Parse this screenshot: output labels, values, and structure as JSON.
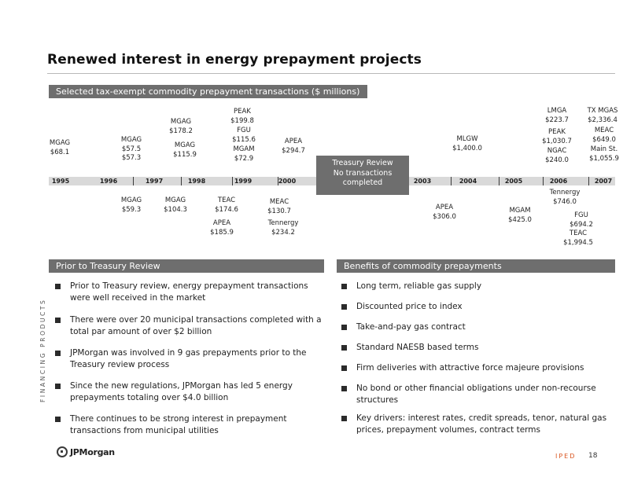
{
  "title": "Renewed interest in energy prepayment projects",
  "top_bar": "Selected tax-exempt commodity prepayment transactions ($ millions)",
  "timeline_years": [
    "1995",
    "1996",
    "1997",
    "1998",
    "1999",
    "2000",
    "2003",
    "2004",
    "2005",
    "2006",
    "2007"
  ],
  "treasury_box": {
    "line1": "Treasury Review",
    "line2": "No transactions",
    "line3": "completed"
  },
  "transactions": {
    "above": [
      {
        "name": "MGAG",
        "amt": "$68.1"
      },
      {
        "name": "MGAG",
        "amt": "$57.5",
        "amt2": "$57.3"
      },
      {
        "name": "MGAG",
        "amt": "$178.2"
      },
      {
        "name": "MGAG",
        "amt": "$115.9"
      },
      {
        "name": "PEAK",
        "amt": "$199.8"
      },
      {
        "name": "FGU",
        "amt": "$115.6"
      },
      {
        "name": "MGAM",
        "amt": "$72.9"
      },
      {
        "name": "APEA",
        "amt": "$294.7"
      },
      {
        "name": "MLGW",
        "amt": "$1,400.0"
      },
      {
        "name": "LMGA",
        "amt": "$223.7"
      },
      {
        "name": "PEAK",
        "amt": "$1,030.7"
      },
      {
        "name": "NGAC",
        "amt": "$240.0"
      },
      {
        "name": "TX MGAS",
        "amt": "$2,336.4"
      },
      {
        "name": "MEAC",
        "amt": "$649.0"
      },
      {
        "name": "Main St.",
        "amt": "$1,055.9"
      }
    ],
    "below": [
      {
        "name": "MGAG",
        "amt": "$59.3"
      },
      {
        "name": "MGAG",
        "amt": "$104.3"
      },
      {
        "name": "TEAC",
        "amt": "$174.6"
      },
      {
        "name": "APEA",
        "amt": "$185.9"
      },
      {
        "name": "MEAC",
        "amt": "$130.7"
      },
      {
        "name": "Tennergy",
        "amt": "$234.2"
      },
      {
        "name": "APEA",
        "amt": "$306.0"
      },
      {
        "name": "MGAM",
        "amt": "$425.0"
      },
      {
        "name": "Tennergy",
        "amt": "$746.0"
      },
      {
        "name": "FGU",
        "amt": "$694.2"
      },
      {
        "name": "TEAC",
        "amt": "$1,994.5"
      }
    ]
  },
  "left_section": {
    "header": "Prior to Treasury Review",
    "bullets": [
      "Prior to Treasury review, energy prepayment transactions were well received in the market",
      "There were over 20 municipal transactions completed with a total par amount of over $2 billion",
      "JPMorgan was involved in 9 gas prepayments prior to the Treasury review process",
      "Since the new regulations, JPMorgan has led 5 energy prepayments totaling over $4.0 billion",
      "There continues to be strong interest in prepayment transactions from municipal utilities"
    ]
  },
  "right_section": {
    "header": "Benefits of commodity prepayments",
    "bullets": [
      "Long term, reliable gas supply",
      "Discounted price to index",
      "Take-and-pay gas contract",
      "Standard NAESB based terms",
      "Firm deliveries with attractive force majeure provisions",
      "No bond or other financial obligations under non-recourse structures",
      "Key drivers: interest rates, credit spreads, tenor, natural gas prices, prepayment volumes, contract terms"
    ]
  },
  "side_text": "FINANCING PRODUCTS",
  "logo_text": "JPMorgan",
  "footer_tag": "IPED",
  "page_number": "18"
}
